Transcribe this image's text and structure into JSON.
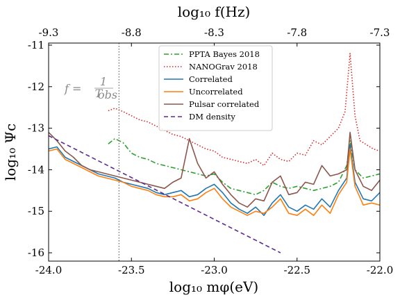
{
  "chart_data": {
    "type": "line",
    "xlabel": "log₁₀ mφ(eV)",
    "ylabel": "log₁₀ Ψc",
    "top_xlabel": "log₁₀ f(Hz)",
    "xlim": [
      -24.0,
      -22.0
    ],
    "ylim": [
      -16.2,
      -10.95
    ],
    "x_ticks": [
      "-24.0",
      "-23.5",
      "-23.0",
      "-22.5",
      "-22.0"
    ],
    "x_tick_values": [
      -24.0,
      -23.5,
      -23.0,
      -22.5,
      -22.0
    ],
    "y_ticks": [
      "-16",
      "-15",
      "-14",
      "-13",
      "-12",
      "-11"
    ],
    "y_tick_values": [
      -16,
      -15,
      -14,
      -13,
      -12,
      -11
    ],
    "top_ticks": [
      "-9.3",
      "-8.8",
      "-8.3",
      "-7.8",
      "-7.3"
    ],
    "top_tick_positions": [
      -24.0,
      -23.5,
      -23.0,
      -22.5,
      -22.0
    ],
    "grid": false,
    "legend_position": "top-center",
    "annotation": {
      "text": "f = 1/T_obs",
      "f_label": "f =",
      "numerator": "1",
      "denominator": "T",
      "denominator_sub": "obs",
      "x": -23.575
    },
    "series": [
      {
        "name": "PPTA Bayes 2018",
        "color": "#2ca02c",
        "style": "dashdot",
        "x": [
          -23.64,
          -23.6,
          -23.55,
          -23.5,
          -23.45,
          -23.4,
          -23.35,
          -23.3,
          -23.25,
          -23.2,
          -23.15,
          -23.1,
          -23.05,
          -23.0,
          -22.95,
          -22.9,
          -22.85,
          -22.8,
          -22.75,
          -22.7,
          -22.65,
          -22.6,
          -22.55,
          -22.5,
          -22.45,
          -22.4,
          -22.35,
          -22.3,
          -22.25,
          -22.2,
          -22.18,
          -22.15,
          -22.1,
          -22.05,
          -22.0
        ],
        "y": [
          -13.38,
          -13.25,
          -13.35,
          -13.6,
          -13.7,
          -13.75,
          -13.85,
          -13.9,
          -13.95,
          -14.0,
          -14.05,
          -14.1,
          -14.15,
          -14.1,
          -14.3,
          -14.45,
          -14.5,
          -14.55,
          -14.6,
          -14.5,
          -14.3,
          -14.4,
          -14.45,
          -14.4,
          -14.45,
          -14.5,
          -14.45,
          -14.4,
          -14.3,
          -13.9,
          -13.3,
          -14.0,
          -14.2,
          -14.15,
          -14.1
        ]
      },
      {
        "name": "NANOGrav 2018",
        "color": "#d62728",
        "style": "dotted",
        "x": [
          -23.64,
          -23.6,
          -23.55,
          -23.5,
          -23.45,
          -23.4,
          -23.35,
          -23.3,
          -23.25,
          -23.2,
          -23.15,
          -23.1,
          -23.05,
          -23.0,
          -22.95,
          -22.9,
          -22.85,
          -22.8,
          -22.75,
          -22.7,
          -22.65,
          -22.6,
          -22.55,
          -22.5,
          -22.45,
          -22.4,
          -22.35,
          -22.3,
          -22.25,
          -22.21,
          -22.18,
          -22.15,
          -22.12,
          -22.08,
          -22.04,
          -22.0
        ],
        "y": [
          -12.58,
          -12.52,
          -12.6,
          -12.7,
          -12.8,
          -12.85,
          -12.95,
          -13.05,
          -13.15,
          -13.2,
          -13.3,
          -13.4,
          -13.5,
          -13.55,
          -13.7,
          -13.75,
          -13.8,
          -13.85,
          -13.75,
          -13.9,
          -13.6,
          -13.75,
          -13.8,
          -13.6,
          -13.65,
          -13.3,
          -13.4,
          -13.2,
          -13.0,
          -12.6,
          -11.2,
          -12.7,
          -13.3,
          -13.4,
          -13.5,
          -13.55
        ]
      },
      {
        "name": "Correlated",
        "color": "#1f77b4",
        "style": "solid",
        "x": [
          -24.0,
          -23.95,
          -23.9,
          -23.85,
          -23.8,
          -23.75,
          -23.7,
          -23.65,
          -23.6,
          -23.55,
          -23.5,
          -23.45,
          -23.4,
          -23.35,
          -23.3,
          -23.25,
          -23.2,
          -23.15,
          -23.1,
          -23.05,
          -23.0,
          -22.95,
          -22.9,
          -22.85,
          -22.8,
          -22.75,
          -22.7,
          -22.65,
          -22.6,
          -22.55,
          -22.5,
          -22.45,
          -22.4,
          -22.35,
          -22.3,
          -22.25,
          -22.2,
          -22.18,
          -22.15,
          -22.1,
          -22.05,
          -22.0
        ],
        "y": [
          -13.5,
          -13.45,
          -13.7,
          -13.8,
          -13.9,
          -14.0,
          -14.1,
          -14.15,
          -14.2,
          -14.3,
          -14.35,
          -14.4,
          -14.45,
          -14.55,
          -14.6,
          -14.55,
          -14.5,
          -14.65,
          -14.6,
          -14.45,
          -14.35,
          -14.55,
          -14.8,
          -14.95,
          -15.05,
          -14.9,
          -15.1,
          -14.8,
          -14.6,
          -14.9,
          -15.0,
          -14.85,
          -14.95,
          -14.7,
          -14.9,
          -14.5,
          -14.2,
          -13.4,
          -14.3,
          -14.7,
          -14.75,
          -14.55
        ]
      },
      {
        "name": "Uncorrelated",
        "color": "#ff7f0e",
        "style": "solid",
        "x": [
          -24.0,
          -23.95,
          -23.9,
          -23.85,
          -23.8,
          -23.75,
          -23.7,
          -23.65,
          -23.6,
          -23.55,
          -23.5,
          -23.45,
          -23.4,
          -23.35,
          -23.3,
          -23.25,
          -23.2,
          -23.15,
          -23.1,
          -23.05,
          -23.0,
          -22.95,
          -22.9,
          -22.85,
          -22.8,
          -22.75,
          -22.7,
          -22.65,
          -22.6,
          -22.55,
          -22.5,
          -22.45,
          -22.4,
          -22.35,
          -22.3,
          -22.25,
          -22.2,
          -22.18,
          -22.15,
          -22.1,
          -22.05,
          -22.0
        ],
        "y": [
          -13.55,
          -13.5,
          -13.75,
          -13.85,
          -13.95,
          -14.05,
          -14.15,
          -14.2,
          -14.25,
          -14.3,
          -14.4,
          -14.45,
          -14.5,
          -14.6,
          -14.65,
          -14.65,
          -14.6,
          -14.75,
          -14.7,
          -14.55,
          -14.45,
          -14.7,
          -14.9,
          -15.0,
          -15.1,
          -15.0,
          -15.05,
          -14.9,
          -14.7,
          -15.05,
          -15.1,
          -14.95,
          -15.1,
          -14.85,
          -15.05,
          -14.6,
          -14.3,
          -13.5,
          -14.4,
          -14.85,
          -14.8,
          -14.85
        ]
      },
      {
        "name": "Pulsar correlated",
        "color": "#8c564b",
        "style": "solid",
        "x": [
          -24.0,
          -23.95,
          -23.9,
          -23.85,
          -23.8,
          -23.75,
          -23.7,
          -23.65,
          -23.6,
          -23.55,
          -23.5,
          -23.45,
          -23.4,
          -23.35,
          -23.3,
          -23.25,
          -23.2,
          -23.15,
          -23.1,
          -23.05,
          -23.0,
          -22.95,
          -22.9,
          -22.85,
          -22.8,
          -22.75,
          -22.7,
          -22.65,
          -22.6,
          -22.55,
          -22.5,
          -22.45,
          -22.4,
          -22.35,
          -22.3,
          -22.25,
          -22.2,
          -22.18,
          -22.15,
          -22.1,
          -22.05,
          -22.0
        ],
        "y": [
          -13.1,
          -13.3,
          -13.55,
          -13.7,
          -13.9,
          -14.0,
          -14.05,
          -14.1,
          -14.15,
          -14.2,
          -14.25,
          -14.3,
          -14.35,
          -14.4,
          -14.45,
          -14.3,
          -14.2,
          -13.25,
          -13.85,
          -14.2,
          -14.05,
          -14.35,
          -14.6,
          -14.8,
          -14.9,
          -14.7,
          -14.75,
          -14.3,
          -14.15,
          -14.6,
          -14.55,
          -14.3,
          -14.35,
          -13.9,
          -14.15,
          -14.1,
          -14.0,
          -13.1,
          -14.0,
          -14.4,
          -14.5,
          -14.25
        ]
      },
      {
        "name": "DM density",
        "color": "#5b2a8e",
        "style": "dashed",
        "x": [
          -24.0,
          -22.6
        ],
        "y": [
          -13.18,
          -16.0
        ]
      }
    ]
  }
}
